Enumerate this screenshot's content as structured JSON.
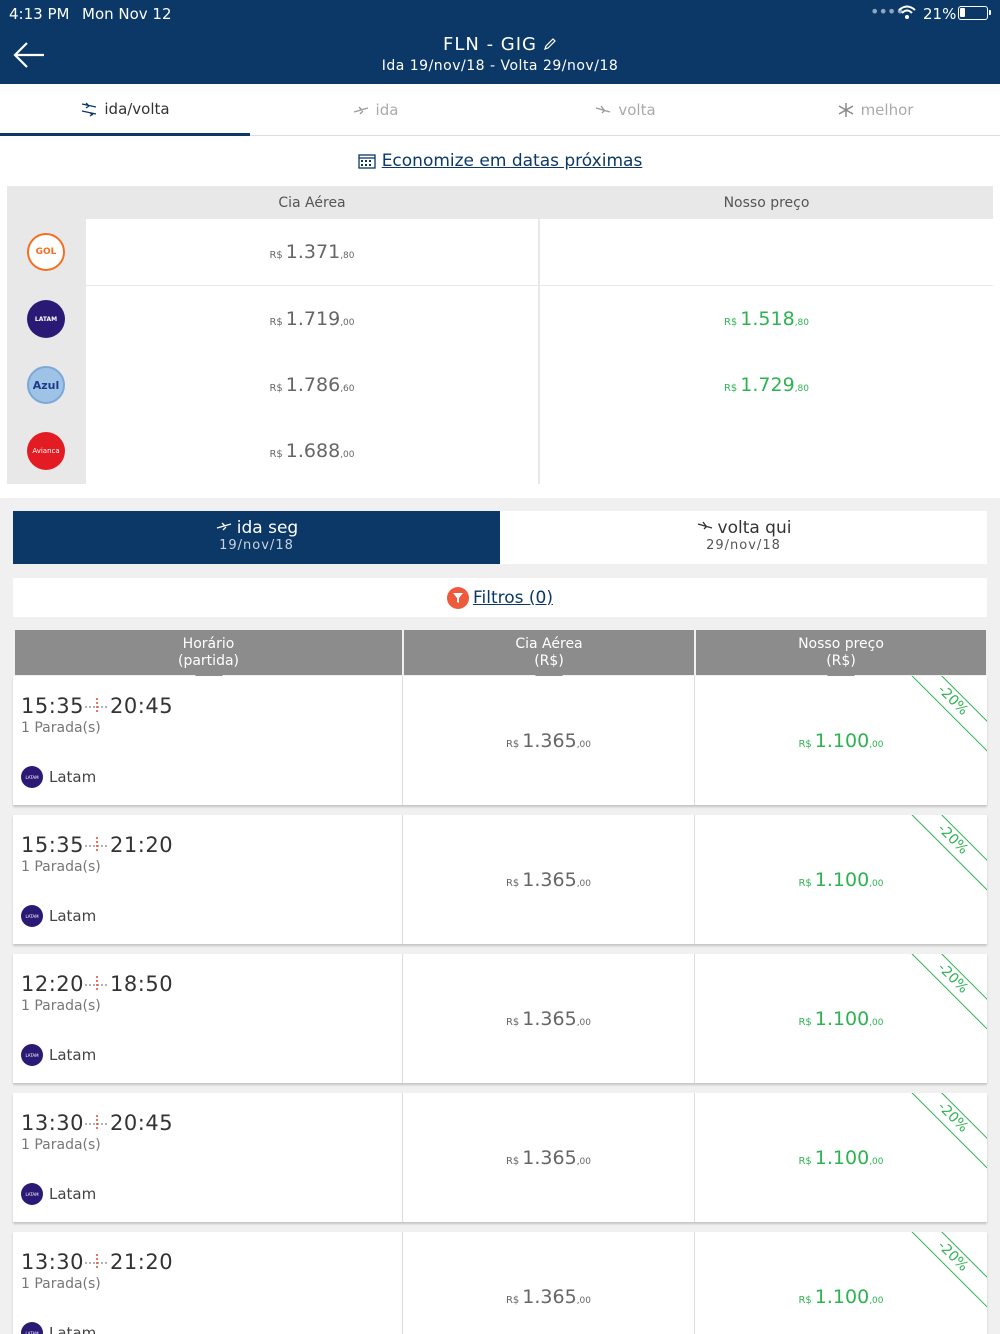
{
  "status_bar": {
    "time": "4:13 PM",
    "date": "Mon Nov 12",
    "battery": "21%"
  },
  "header": {
    "route": "FLN - GIG",
    "dates": "Ida 19/nov/18 - Volta 29/nov/18"
  },
  "tabs": [
    {
      "label": "ida/volta",
      "active": true
    },
    {
      "label": "ida",
      "active": false
    },
    {
      "label": "volta",
      "active": false
    },
    {
      "label": "melhor",
      "active": false
    }
  ],
  "economize_label": "Economize em datas próximas",
  "comparison": {
    "col_airline": "Cia Aérea",
    "col_ours": "Nosso preço",
    "rows": [
      {
        "logo": "GOL",
        "logo_color": "#f26f21",
        "airline_price": {
          "cur": "R$",
          "int": "1.371",
          "cents": ",80"
        },
        "our_price": {
          "cur": "",
          "int": "",
          "cents": ""
        }
      },
      {
        "logo": "LATAM",
        "logo_color": "#2b1a75",
        "airline_price": {
          "cur": "R$",
          "int": "1.719",
          "cents": ",00"
        },
        "our_price": {
          "cur": "R$",
          "int": "1.518",
          "cents": ",80"
        }
      },
      {
        "logo": "Azul",
        "logo_color": "#1d3b8a",
        "airline_price": {
          "cur": "R$",
          "int": "1.786",
          "cents": ",60"
        },
        "our_price": {
          "cur": "R$",
          "int": "1.729",
          "cents": ",80"
        }
      },
      {
        "logo": "Avianca",
        "logo_color": "#e31b23",
        "airline_price": {
          "cur": "R$",
          "int": "1.688",
          "cents": ",00"
        },
        "our_price": {
          "cur": "",
          "int": "",
          "cents": ""
        }
      }
    ]
  },
  "toggle": {
    "ida": {
      "label": "ida seg",
      "date": "19/nov/18"
    },
    "volta": {
      "label": "volta qui",
      "date": "29/nov/18"
    }
  },
  "filtros_label": "Filtros (0)",
  "results_header": {
    "horario": "Horário",
    "horario_sub": "(partida)",
    "cia": "Cia Aérea",
    "cia_sub": "(R$)",
    "nosso": "Nosso preço",
    "nosso_sub": "(R$)"
  },
  "flights": [
    {
      "depart": "15:35",
      "arrive": "20:45",
      "stops": "1 Parada(s)",
      "airline": "Latam",
      "cia_cur": "R$",
      "cia_int": "1.365",
      "cia_cents": ",00",
      "our_cur": "R$",
      "our_int": "1.100",
      "our_cents": ",00",
      "discount": "-20%"
    },
    {
      "depart": "15:35",
      "arrive": "21:20",
      "stops": "1 Parada(s)",
      "airline": "Latam",
      "cia_cur": "R$",
      "cia_int": "1.365",
      "cia_cents": ",00",
      "our_cur": "R$",
      "our_int": "1.100",
      "our_cents": ",00",
      "discount": "-20%"
    },
    {
      "depart": "12:20",
      "arrive": "18:50",
      "stops": "1 Parada(s)",
      "airline": "Latam",
      "cia_cur": "R$",
      "cia_int": "1.365",
      "cia_cents": ",00",
      "our_cur": "R$",
      "our_int": "1.100",
      "our_cents": ",00",
      "discount": "-20%"
    },
    {
      "depart": "13:30",
      "arrive": "20:45",
      "stops": "1 Parada(s)",
      "airline": "Latam",
      "cia_cur": "R$",
      "cia_int": "1.365",
      "cia_cents": ",00",
      "our_cur": "R$",
      "our_int": "1.100",
      "our_cents": ",00",
      "discount": "-20%"
    },
    {
      "depart": "13:30",
      "arrive": "21:20",
      "stops": "1 Parada(s)",
      "airline": "Latam",
      "cia_cur": "R$",
      "cia_int": "1.365",
      "cia_cents": ",00",
      "our_cur": "R$",
      "our_int": "1.100",
      "our_cents": ",00",
      "discount": "-20%"
    }
  ],
  "colors": {
    "brand": "#0b3866",
    "green": "#2eb352",
    "filter": "#ef5a3c"
  }
}
